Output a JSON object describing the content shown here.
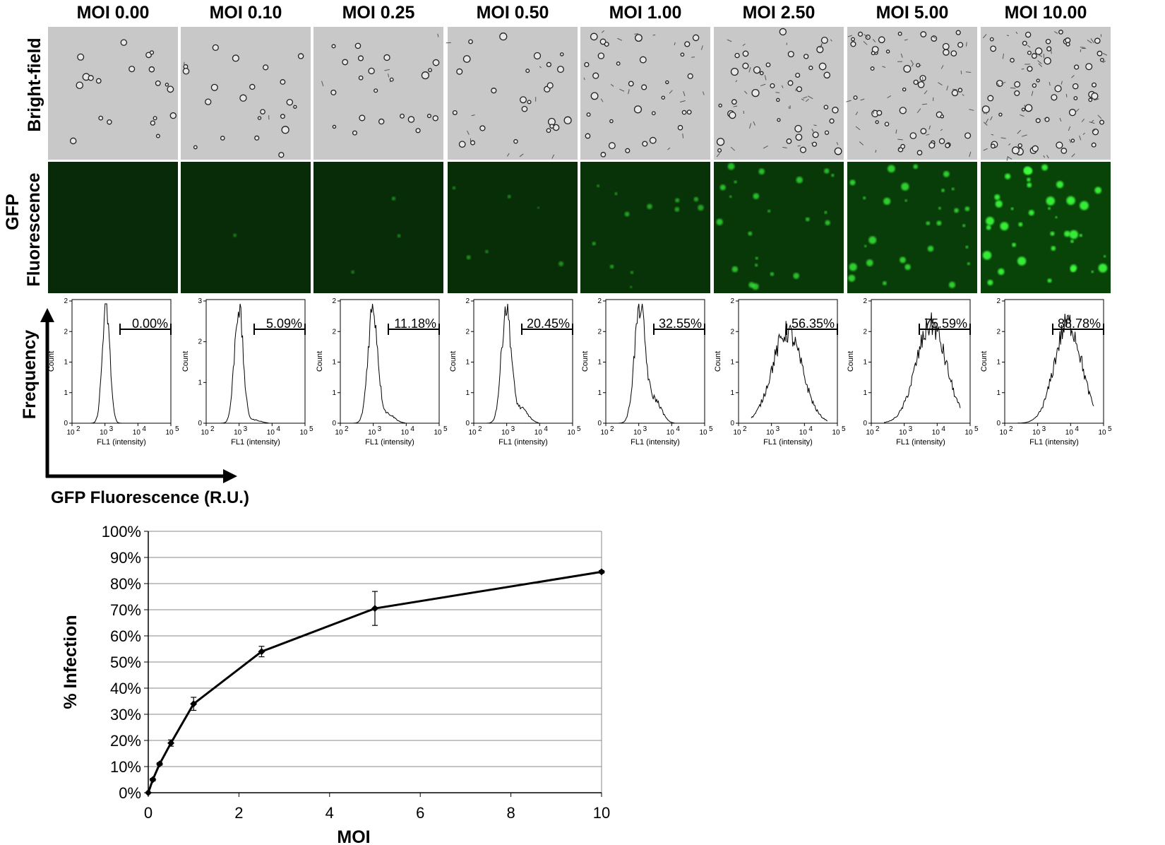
{
  "moi_labels": [
    "MOI 0.00",
    "MOI 0.10",
    "MOI 0.25",
    "MOI 0.50",
    "MOI 1.00",
    "MOI 2.50",
    "MOI 5.00",
    "MOI 10.00"
  ],
  "row_labels": {
    "brightfield": "Bright-field",
    "gfp_line1": "GFP",
    "gfp_line2": "Fluorescence",
    "frequency": "Frequency"
  },
  "arrow_axis_label": "GFP Fluorescence (R.U.)",
  "histograms": {
    "ylabel": "Count",
    "xlabel": "FL1 (intensity)",
    "xticks": [
      "10",
      "10",
      "10",
      "10"
    ],
    "xtick_exps": [
      "2",
      "3",
      "4",
      "5"
    ],
    "panels": [
      {
        "yticks": [
          "0",
          "1",
          "1",
          "2",
          "2"
        ],
        "gate_pct": "0.00%",
        "peak": 0.28,
        "width": 0.07,
        "shoulder": 0.0
      },
      {
        "yticks": [
          "0",
          "1",
          "2",
          "3"
        ],
        "gate_pct": "5.09%",
        "peak": 0.26,
        "width": 0.08,
        "shoulder": 0.08
      },
      {
        "yticks": [
          "0",
          "1",
          "1",
          "2",
          "2"
        ],
        "gate_pct": "11.18%",
        "peak": 0.26,
        "width": 0.09,
        "shoulder": 0.22
      },
      {
        "yticks": [
          "0",
          "1",
          "1",
          "2",
          "2"
        ],
        "gate_pct": "20.45%",
        "peak": 0.26,
        "width": 0.09,
        "shoulder": 0.35
      },
      {
        "yticks": [
          "0",
          "1",
          "1",
          "2",
          "2"
        ],
        "gate_pct": "32.55%",
        "peak": 0.28,
        "width": 0.1,
        "shoulder": 0.55
      },
      {
        "yticks": [
          "0",
          "1",
          "1",
          "2",
          "2"
        ],
        "gate_pct": "56.35%",
        "peak": 0.45,
        "width": 0.2,
        "shoulder": 0.9
      },
      {
        "yticks": [
          "0",
          "1",
          "1",
          "2",
          "2"
        ],
        "gate_pct": "75.59%",
        "peak": 0.6,
        "width": 0.2,
        "shoulder": 0.9
      },
      {
        "yticks": [
          "0",
          "1",
          "1",
          "2",
          "2"
        ],
        "gate_pct": "88.78%",
        "peak": 0.65,
        "width": 0.18,
        "shoulder": 0.9
      }
    ]
  },
  "fluorescence_levels": [
    0.0,
    0.03,
    0.08,
    0.15,
    0.3,
    0.55,
    0.7,
    1.0
  ],
  "colors": {
    "brightfield_bg": "#c8c8c8",
    "gfp_bg": "#0b2a0b",
    "gfp_spot": "#3cff3c",
    "line": "#000000"
  },
  "chart_data": {
    "type": "line",
    "x": [
      0,
      0.1,
      0.25,
      0.5,
      1,
      2.5,
      5,
      10
    ],
    "y": [
      0,
      5,
      11,
      19,
      34,
      54,
      70.5,
      84.5
    ],
    "error": [
      0,
      0.5,
      0.5,
      1.2,
      2.5,
      2.0,
      6.5,
      0.5
    ],
    "xlabel": "MOI",
    "ylabel": "% Infection",
    "xlim": [
      0,
      10
    ],
    "ylim": [
      0,
      100
    ],
    "xticks": [
      "0",
      "2",
      "4",
      "6",
      "8",
      "10"
    ],
    "yticks": [
      "0%",
      "10%",
      "20%",
      "30%",
      "40%",
      "50%",
      "60%",
      "70%",
      "80%",
      "90%",
      "100%"
    ],
    "grid": true
  }
}
